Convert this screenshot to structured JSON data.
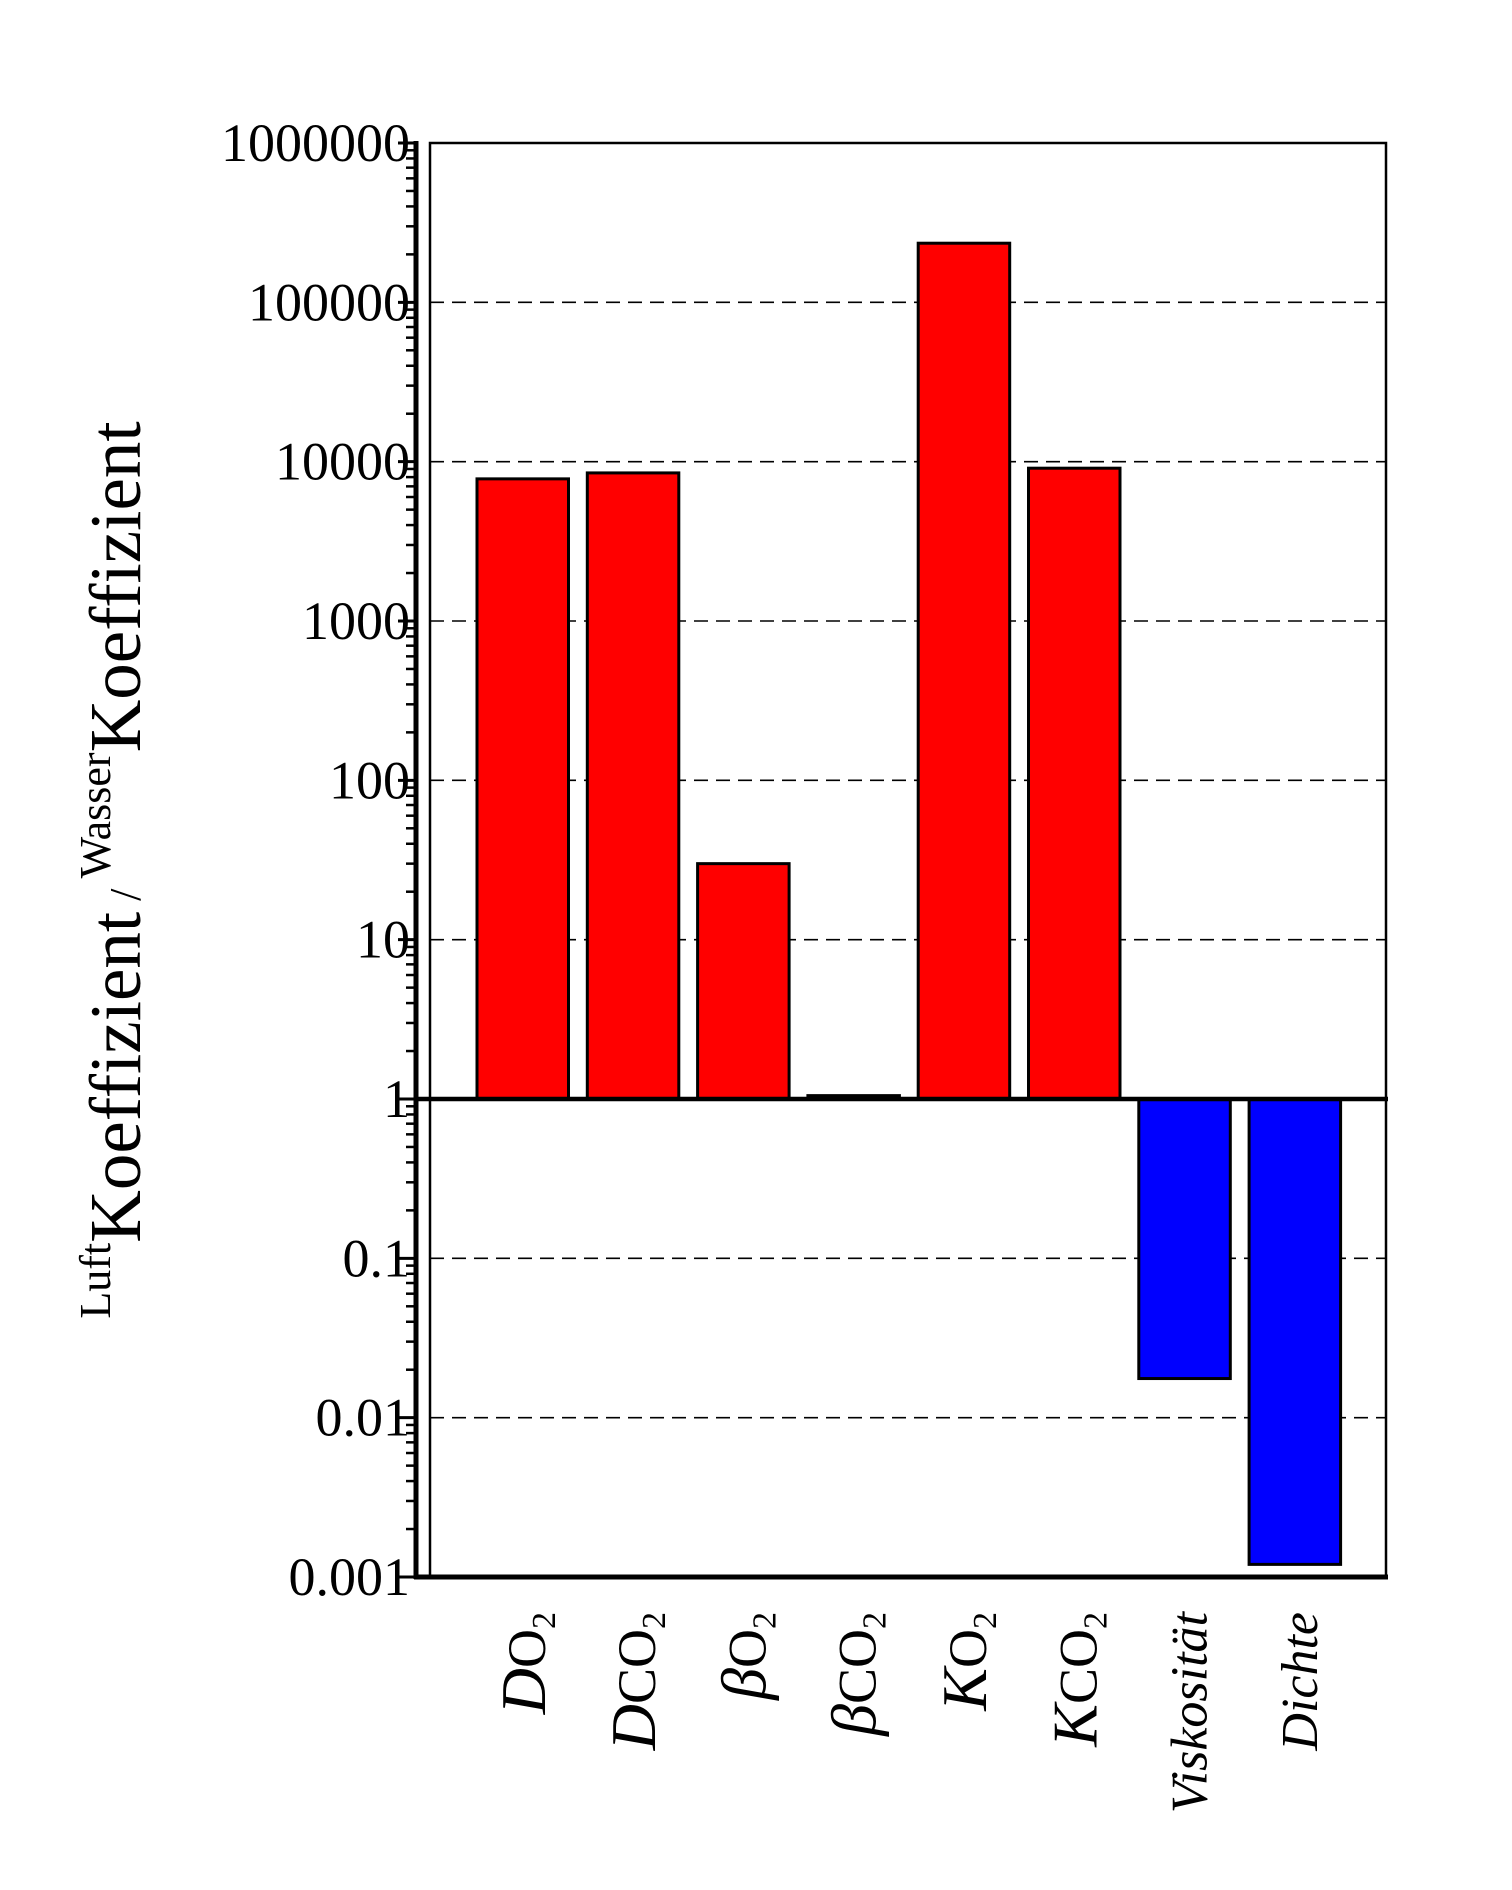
{
  "chart_data": {
    "type": "bar",
    "title": "",
    "yscale": "log",
    "baseline": 1,
    "ylim": [
      0.001,
      1000000
    ],
    "grid": "dashed horizontal at each decade",
    "ylabel": {
      "sup1": "Luft",
      "main1": "Koeffizient",
      "sep": " / ",
      "sup2": "Wasser",
      "main2": "Koeffizient"
    },
    "yticks": [
      "1000000",
      "100000",
      "10000",
      "1000",
      "100",
      "10",
      "1",
      "0.1",
      "0.01",
      "0.001"
    ],
    "ytick_values": [
      1000000,
      100000,
      10000,
      1000,
      100,
      10,
      1,
      0.1,
      0.01,
      0.001
    ],
    "categories": [
      {
        "symbol": "D",
        "species": "O",
        "sub": "2"
      },
      {
        "symbol": "D",
        "species": "CO",
        "sub": "2"
      },
      {
        "symbol": "β",
        "species": "O",
        "sub": "2"
      },
      {
        "symbol": "β",
        "species": "CO",
        "sub": "2"
      },
      {
        "symbol": "K",
        "species": "O",
        "sub": "2"
      },
      {
        "symbol": "K",
        "species": "CO",
        "sub": "2"
      },
      {
        "symbol": "Viskosität",
        "species": "",
        "sub": ""
      },
      {
        "symbol": "Dichte",
        "species": "",
        "sub": ""
      }
    ],
    "values": [
      7800,
      8500,
      30,
      1.05,
      235000,
      9100,
      0.0176,
      0.0012
    ],
    "colors": {
      "above_one": "#ff0000",
      "below_one": "#0000ff"
    }
  }
}
